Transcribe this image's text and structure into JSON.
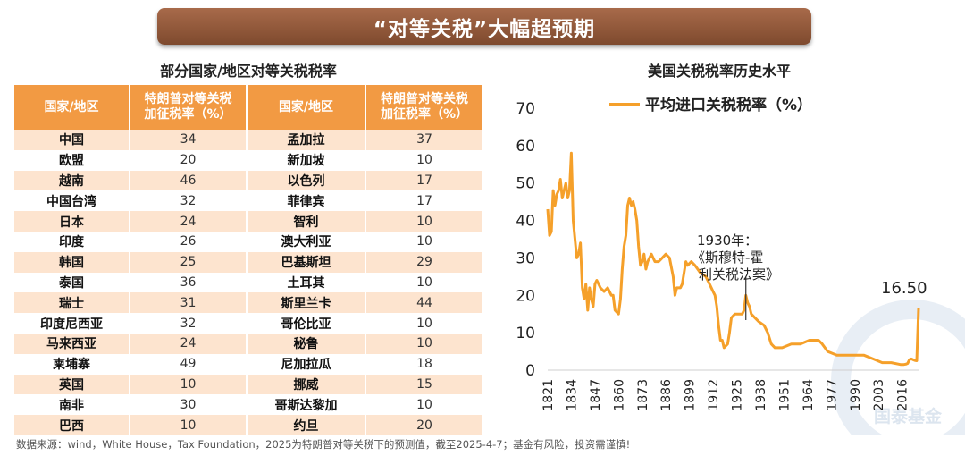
{
  "banner": {
    "title": "“对等关税”大幅超预期"
  },
  "table": {
    "title": "部分国家/地区对等关税税率",
    "headers": [
      "国家/地区",
      "特朗普对等关税\n加征税率（%）",
      "国家/地区",
      "特朗普对等关税\n加征税率（%）"
    ],
    "rows": [
      [
        "中国",
        "34",
        "孟加拉",
        "37"
      ],
      [
        "欧盟",
        "20",
        "新加坡",
        "10"
      ],
      [
        "越南",
        "46",
        "以色列",
        "17"
      ],
      [
        "中国台湾",
        "32",
        "菲律宾",
        "17"
      ],
      [
        "日本",
        "24",
        "智利",
        "10"
      ],
      [
        "印度",
        "26",
        "澳大利亚",
        "10"
      ],
      [
        "韩国",
        "25",
        "巴基斯坦",
        "29"
      ],
      [
        "泰国",
        "36",
        "土耳其",
        "10"
      ],
      [
        "瑞士",
        "31",
        "斯里兰卡",
        "44"
      ],
      [
        "印度尼西亚",
        "32",
        "哥伦比亚",
        "10"
      ],
      [
        "马来西亚",
        "24",
        "秘鲁",
        "10"
      ],
      [
        "柬埔寨",
        "49",
        "尼加拉瓜",
        "18"
      ],
      [
        "英国",
        "10",
        "挪威",
        "15"
      ],
      [
        "南非",
        "30",
        "哥斯达黎加",
        "10"
      ],
      [
        "巴西",
        "10",
        "约旦",
        "20"
      ]
    ]
  },
  "chart_data": {
    "type": "line",
    "title": "美国关税税率历史水平",
    "legend": "平均进口关税税率（%）",
    "legend_position": "top",
    "grid": false,
    "color": "#f5a02a",
    "xlim": [
      1821,
      2025
    ],
    "ylim": [
      0,
      70
    ],
    "y_ticks": [
      0,
      10,
      20,
      30,
      40,
      50,
      60,
      70
    ],
    "x_ticks": [
      1821,
      1834,
      1847,
      1860,
      1873,
      1886,
      1899,
      1912,
      1925,
      1938,
      1951,
      1964,
      1977,
      1990,
      2003,
      2016
    ],
    "annotation": {
      "text_line1": "1930年：",
      "text_line2": "《斯穆特-霍",
      "text_line3": "利关税法案》",
      "year": 1930
    },
    "end_label": "16.50",
    "series": [
      {
        "x": [
          1821,
          1822,
          1823,
          1824,
          1825,
          1826,
          1827,
          1828,
          1829,
          1830,
          1831,
          1832,
          1833,
          1834,
          1835,
          1836,
          1837,
          1838,
          1839,
          1840,
          1841,
          1842,
          1843,
          1844,
          1845,
          1846,
          1847,
          1848,
          1849,
          1850,
          1852,
          1854,
          1856,
          1857,
          1858,
          1860,
          1861,
          1862,
          1863,
          1864,
          1865,
          1866,
          1867,
          1868,
          1869,
          1870,
          1871,
          1872,
          1873,
          1874,
          1875,
          1876,
          1878,
          1880,
          1882,
          1884,
          1886,
          1888,
          1890,
          1891,
          1892,
          1894,
          1895,
          1897,
          1898,
          1900,
          1902,
          1905,
          1908,
          1910,
          1912,
          1913,
          1914,
          1915,
          1916,
          1917,
          1918,
          1920,
          1921,
          1922,
          1924,
          1926,
          1928,
          1929,
          1930,
          1931,
          1932,
          1933,
          1935,
          1937,
          1940,
          1942,
          1944,
          1946,
          1948,
          1950,
          1955,
          1960,
          1965,
          1968,
          1970,
          1972,
          1975,
          1980,
          1985,
          1990,
          1995,
          2000,
          2005,
          2010,
          2015,
          2017,
          2018,
          2019,
          2020,
          2021,
          2022,
          2023,
          2024,
          2025
        ],
        "values": [
          43,
          36,
          37,
          48,
          44,
          47,
          48,
          51,
          46,
          48,
          50,
          46,
          48,
          58,
          40,
          35,
          30,
          31,
          34,
          22,
          19,
          23,
          16,
          22,
          19,
          17,
          23,
          24,
          23,
          22,
          21,
          22,
          20,
          20,
          16,
          15,
          19,
          27,
          33,
          36,
          44,
          46,
          44,
          45,
          43,
          40,
          33,
          28,
          29,
          31,
          27,
          29,
          31,
          29,
          29,
          30,
          31,
          30,
          25,
          20,
          22,
          22,
          23,
          29,
          28,
          29,
          28,
          26,
          25,
          23,
          21,
          20,
          17,
          12,
          8,
          8,
          6,
          7,
          10,
          14,
          15,
          15,
          15,
          16,
          20,
          18,
          17,
          15,
          14,
          13,
          12,
          10,
          7,
          6,
          6,
          6,
          7,
          7,
          8,
          8,
          8,
          7,
          5,
          4,
          4,
          4,
          4,
          3,
          2,
          2,
          1.5,
          1.5,
          1.6,
          1.8,
          2.8,
          3.0,
          2.8,
          2.6,
          2.5,
          16.5
        ]
      }
    ]
  },
  "watermark": "国泰基金",
  "source": "数据来源：wind，White House，Tax Foundation，2025为特朗普对等关税下的预测值，截至2025-4-7；基金有风险，投资需谨慎!"
}
